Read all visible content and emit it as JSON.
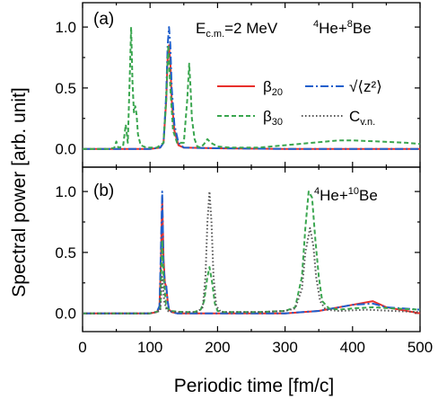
{
  "figure": {
    "ylabel": "Spectral power [arb. unit]",
    "xlabel": "Periodic time [fm/c]"
  },
  "colors": {
    "beta20": "#e8302c",
    "beta30": "#3aa64f",
    "z2": "#1f5fcc",
    "cvn": "#555555"
  },
  "chart_data": [
    {
      "type": "line",
      "panel_label": "(a)",
      "annotation_energy": "E",
      "annotation_energy_sub": "c.m.",
      "annotation_energy_val": "=2 MeV",
      "annotation_reaction": {
        "a1": "4",
        "e1": "He+",
        "a2": "8",
        "e2": "Be"
      },
      "xlim": [
        0,
        500
      ],
      "ylim": [
        -0.15,
        1.2
      ],
      "yticks": [
        "0.0",
        "0.5",
        "1.0"
      ],
      "legend": {
        "beta20": {
          "sym": "β",
          "sub": "20"
        },
        "z2": {
          "text": "√⟨z²⟩"
        },
        "beta30": {
          "sym": "β",
          "sub": "30"
        },
        "cvn": {
          "sym": "C",
          "sub": "v.n."
        }
      },
      "series": [
        {
          "key": "beta20",
          "x": [
            0,
            100,
            115,
            120,
            124,
            126,
            128,
            130,
            132,
            136,
            142,
            150,
            200,
            300,
            400,
            500
          ],
          "y": [
            0,
            0,
            0.01,
            0.05,
            0.4,
            0.75,
            0.85,
            0.7,
            0.4,
            0.15,
            0.03,
            0.01,
            0.005,
            0,
            0,
            0
          ]
        },
        {
          "key": "z2",
          "x": [
            0,
            100,
            115,
            120,
            124,
            126,
            128,
            130,
            132,
            136,
            142,
            150,
            200,
            300,
            400,
            500
          ],
          "y": [
            0,
            0,
            0.01,
            0.05,
            0.45,
            0.85,
            1.0,
            0.85,
            0.5,
            0.2,
            0.05,
            0.01,
            0.005,
            0,
            0,
            0
          ]
        },
        {
          "key": "beta30",
          "x": [
            0,
            40,
            47,
            50,
            53,
            60,
            64,
            67,
            70,
            72,
            74,
            76,
            78,
            80,
            82,
            86,
            95,
            110,
            120,
            124,
            127,
            130,
            134,
            140,
            150,
            155,
            158,
            160,
            162,
            166,
            170,
            175,
            180,
            185,
            190,
            200,
            220,
            260,
            300,
            340,
            380,
            400,
            440,
            480,
            500
          ],
          "y": [
            0,
            0,
            0.01,
            0.06,
            0.01,
            0.02,
            0.2,
            0.05,
            0.6,
            1.0,
            0.55,
            0.3,
            0.35,
            0.28,
            0.12,
            0.03,
            0.01,
            0.01,
            0.05,
            0.4,
            0.85,
            0.5,
            0.15,
            0.05,
            0.05,
            0.4,
            0.7,
            0.5,
            0.25,
            0.08,
            0.02,
            0.01,
            0.04,
            0.08,
            0.05,
            0.02,
            0.01,
            0.01,
            0.03,
            0.05,
            0.07,
            0.07,
            0.06,
            0.05,
            0.04
          ]
        }
      ]
    },
    {
      "type": "line",
      "panel_label": "(b)",
      "annotation_reaction": {
        "a1": "4",
        "e1": "He+",
        "a2": "10",
        "e2": "Be"
      },
      "xlim": [
        0,
        500
      ],
      "ylim": [
        -0.15,
        1.2
      ],
      "yticks": [
        "0.0",
        "0.5",
        "1.0"
      ],
      "xticks": [
        "0",
        "100",
        "200",
        "300",
        "400",
        "500"
      ],
      "series": [
        {
          "key": "beta20",
          "x": [
            0,
            100,
            110,
            114,
            116,
            118,
            120,
            122,
            124,
            126,
            128,
            132,
            140,
            200,
            300,
            350,
            400,
            430,
            450,
            500
          ],
          "y": [
            0,
            0,
            0.01,
            0.05,
            0.4,
            0.95,
            0.45,
            0.25,
            0.22,
            0.1,
            0.03,
            0.01,
            0,
            0,
            0,
            0.02,
            0.07,
            0.1,
            0.05,
            0
          ]
        },
        {
          "key": "z2",
          "x": [
            0,
            100,
            110,
            114,
            116,
            118,
            120,
            122,
            124,
            126,
            128,
            132,
            140,
            200,
            300,
            350,
            400,
            430,
            450,
            500
          ],
          "y": [
            0,
            0,
            0.01,
            0.06,
            0.5,
            1.0,
            0.4,
            0.25,
            0.23,
            0.1,
            0.03,
            0.01,
            0,
            0,
            0,
            0.02,
            0.07,
            0.08,
            0.05,
            0.03
          ]
        },
        {
          "key": "beta30",
          "x": [
            0,
            100,
            115,
            118,
            120,
            124,
            130,
            150,
            165,
            175,
            180,
            185,
            188,
            192,
            196,
            200,
            210,
            230,
            260,
            300,
            315,
            325,
            330,
            335,
            340,
            345,
            350,
            355,
            365,
            380,
            400,
            430,
            460,
            500
          ],
          "y": [
            0,
            0,
            0.02,
            0.6,
            0.3,
            0.05,
            0.02,
            0.01,
            0.01,
            0.03,
            0.1,
            0.3,
            0.38,
            0.25,
            0.08,
            0.02,
            0.01,
            0.01,
            0.01,
            0.02,
            0.05,
            0.3,
            0.7,
            1.0,
            0.95,
            0.6,
            0.3,
            0.1,
            0.04,
            0.03,
            0.04,
            0.05,
            0.04,
            0.03
          ]
        },
        {
          "key": "cvn",
          "x": [
            0,
            100,
            115,
            118,
            121,
            125,
            140,
            170,
            178,
            182,
            185,
            188,
            191,
            194,
            198,
            205,
            230,
            260,
            300,
            315,
            325,
            330,
            337,
            342,
            346,
            352,
            360,
            380,
            420,
            460,
            500
          ],
          "y": [
            0,
            0,
            0.02,
            0.3,
            0.1,
            0.02,
            0.01,
            0.01,
            0.05,
            0.3,
            0.75,
            1.0,
            0.75,
            0.3,
            0.06,
            0.01,
            0.01,
            0.01,
            0.02,
            0.04,
            0.2,
            0.5,
            0.7,
            0.55,
            0.3,
            0.1,
            0.03,
            0.02,
            0.03,
            0.02,
            0.01
          ]
        }
      ]
    }
  ]
}
